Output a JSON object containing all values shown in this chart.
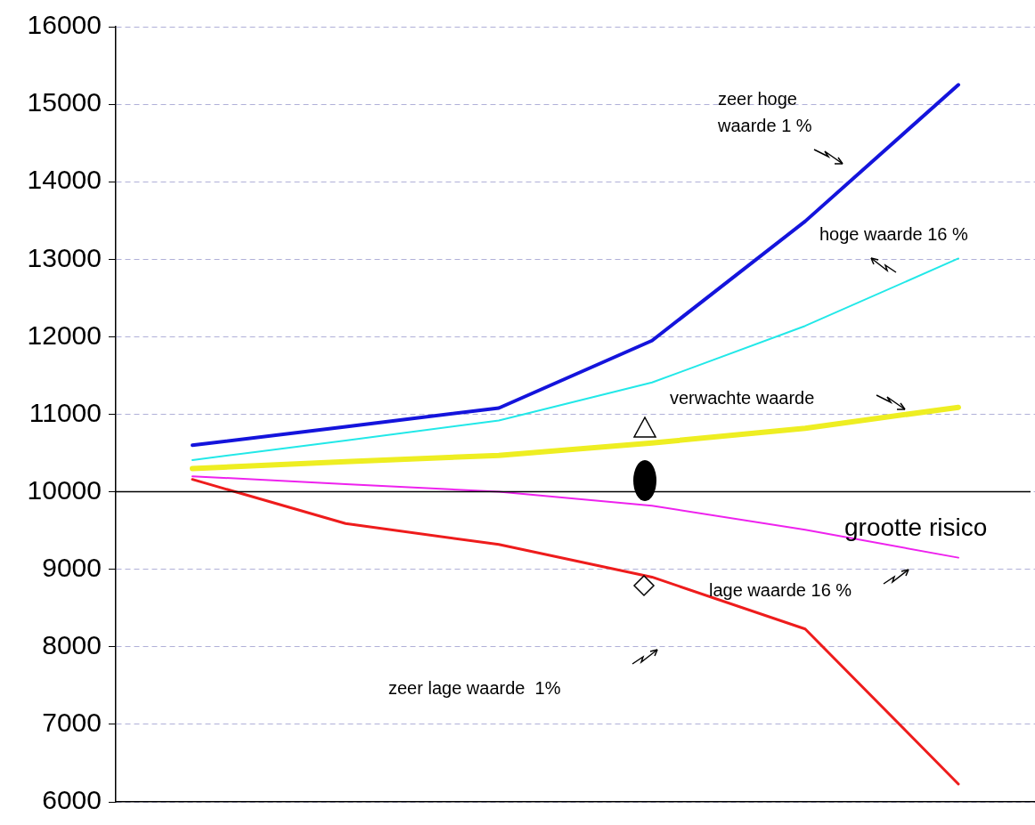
{
  "chart_data": {
    "type": "line",
    "categories": [
      null,
      null,
      null,
      null,
      null,
      null
    ],
    "series": [
      {
        "color": "#1414dc",
        "values": [
          10600,
          10840,
          11080,
          11950,
          13490,
          15250
        ]
      },
      {
        "color": "#22e8e8",
        "values": [
          10410,
          10660,
          10920,
          11410,
          12140,
          13010
        ]
      },
      {
        "color": "#eeee22",
        "values": [
          10300,
          10390,
          10470,
          10630,
          10820,
          11090
        ]
      },
      {
        "color": "#ee22ee",
        "values": [
          10200,
          10100,
          10000,
          9820,
          9510,
          9150
        ]
      },
      {
        "color": "#ee1c1c",
        "values": [
          10160,
          9590,
          9320,
          8900,
          8230,
          6230
        ]
      }
    ],
    "ylim": [
      6000,
      16000
    ],
    "yticks": [
      6000,
      7000,
      8000,
      9000,
      10000,
      11000,
      12000,
      13000,
      14000,
      15000,
      16000
    ],
    "grid": "y",
    "legend": false,
    "tick_labels": "y",
    "marker": "none",
    "ref_lines": [
      {
        "axis": "y",
        "value": 10000,
        "color": "#000000"
      }
    ],
    "annotations": [
      "zeer hoge\nwaarde 1 %",
      "hoge waarde 16 %",
      "verwachte waarde",
      "grootte risico",
      "lage waarde 16 %",
      "zeer lage waarde  1%"
    ]
  }
}
